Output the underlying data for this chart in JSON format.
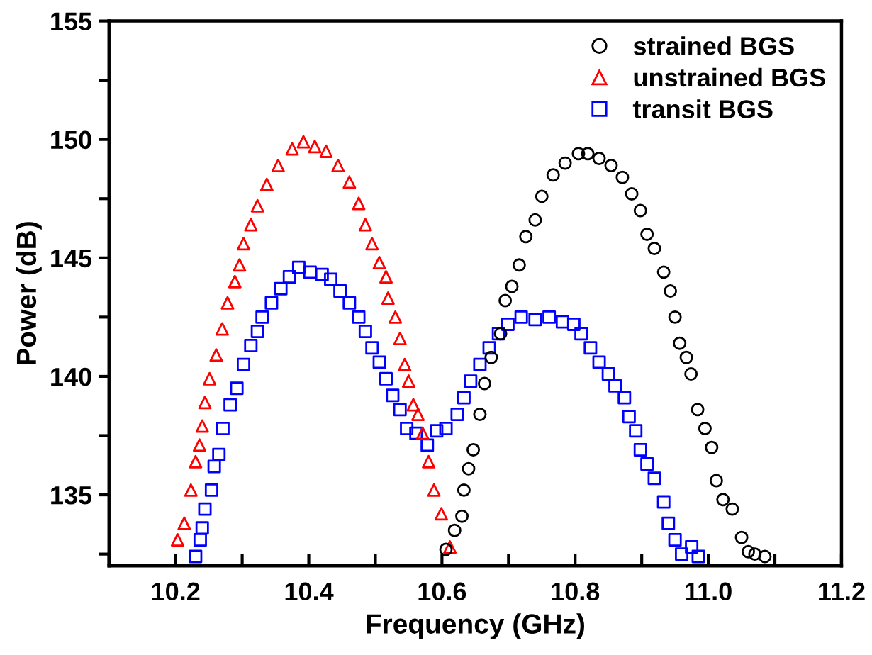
{
  "chart_data": {
    "type": "scatter",
    "xlabel": "Frequency (GHz)",
    "ylabel": "Power (dB)",
    "xlim": [
      10.1,
      11.2
    ],
    "ylim": [
      132,
      155
    ],
    "xticks": [
      {
        "value": 10.1,
        "label": null
      },
      10.2,
      {
        "value": 10.3,
        "label": null
      },
      10.4,
      {
        "value": 10.5,
        "label": null
      },
      10.6,
      {
        "value": 10.7,
        "label": null
      },
      10.8,
      {
        "value": 10.9,
        "label": null
      },
      {
        "value": 11.0,
        "label": "11.0"
      },
      {
        "value": 11.1,
        "label": null
      },
      11.2
    ],
    "yticks": [
      {
        "value": 132.5,
        "label": null
      },
      135,
      {
        "value": 137.5,
        "label": null
      },
      140,
      {
        "value": 142.5,
        "label": null
      },
      145,
      {
        "value": 147.5,
        "label": null
      },
      150,
      {
        "value": 152.5,
        "label": null
      },
      155
    ],
    "grid": false,
    "legend": "top right",
    "series": [
      {
        "name": "strained BGS",
        "color": "#000000",
        "marker": "circle",
        "x": [
          10.606,
          10.619,
          10.63,
          10.633,
          10.64,
          10.647,
          10.657,
          10.664,
          10.674,
          10.688,
          10.695,
          10.705,
          10.716,
          10.726,
          10.74,
          10.75,
          10.767,
          10.785,
          10.805,
          10.819,
          10.836,
          10.854,
          10.871,
          10.885,
          10.898,
          10.908,
          10.919,
          10.933,
          10.943,
          10.95,
          10.957,
          10.967,
          10.974,
          10.984,
          10.995,
          11.005,
          11.012,
          11.022,
          11.036,
          11.05,
          11.06,
          11.07,
          11.085
        ],
        "values": [
          132.7,
          133.5,
          134.1,
          135.2,
          136.1,
          136.9,
          138.4,
          139.7,
          140.8,
          141.8,
          143.2,
          143.8,
          144.7,
          145.9,
          146.6,
          147.6,
          148.5,
          149.0,
          149.4,
          149.4,
          149.2,
          148.9,
          148.4,
          147.7,
          147.0,
          146.0,
          145.4,
          144.4,
          143.6,
          142.5,
          141.4,
          140.8,
          140.1,
          138.6,
          137.8,
          137.0,
          135.6,
          134.8,
          134.4,
          133.2,
          132.6,
          132.5,
          132.4
        ]
      },
      {
        "name": "unstrained BGS",
        "color": "#ff0000",
        "marker": "triangle",
        "x": [
          10.203,
          10.213,
          10.223,
          10.23,
          10.236,
          10.24,
          10.244,
          10.251,
          10.261,
          10.27,
          10.278,
          10.289,
          10.296,
          10.302,
          10.313,
          10.323,
          10.337,
          10.354,
          10.375,
          10.392,
          10.409,
          10.426,
          10.444,
          10.461,
          10.475,
          10.485,
          10.495,
          10.506,
          10.516,
          10.519,
          10.53,
          10.537,
          10.544,
          10.55,
          10.557,
          10.564,
          10.571,
          10.58,
          10.588,
          10.599,
          10.612
        ],
        "values": [
          133.1,
          133.8,
          135.2,
          136.4,
          137.1,
          137.9,
          138.9,
          139.9,
          140.9,
          142.0,
          143.1,
          144.0,
          144.7,
          145.6,
          146.4,
          147.2,
          148.1,
          148.9,
          149.6,
          149.9,
          149.7,
          149.5,
          148.9,
          148.2,
          147.3,
          146.4,
          145.6,
          144.8,
          144.2,
          143.3,
          142.5,
          141.6,
          140.5,
          139.8,
          138.8,
          138.4,
          137.6,
          136.4,
          135.2,
          134.2,
          132.8
        ]
      },
      {
        "name": "transit BGS",
        "color": "#0000ff",
        "marker": "square",
        "x": [
          10.23,
          10.237,
          10.24,
          10.244,
          10.254,
          10.258,
          10.265,
          10.271,
          10.282,
          10.292,
          10.302,
          10.313,
          10.323,
          10.33,
          10.344,
          10.358,
          10.371,
          10.385,
          10.402,
          10.42,
          10.433,
          10.447,
          10.461,
          10.475,
          10.485,
          10.495,
          10.506,
          10.516,
          10.526,
          10.537,
          10.547,
          10.561,
          10.578,
          10.592,
          10.606,
          10.623,
          10.633,
          10.643,
          10.657,
          10.671,
          10.685,
          10.699,
          10.719,
          10.74,
          10.761,
          10.781,
          10.798,
          10.809,
          10.823,
          10.836,
          10.85,
          10.86,
          10.874,
          10.881,
          10.891,
          10.898,
          10.908,
          10.919,
          10.933,
          10.94,
          10.95,
          10.96,
          10.975,
          10.985
        ],
        "values": [
          132.4,
          133.1,
          133.6,
          134.4,
          135.2,
          136.2,
          136.7,
          137.8,
          138.8,
          139.5,
          140.5,
          141.3,
          141.9,
          142.5,
          143.1,
          143.7,
          144.2,
          144.6,
          144.4,
          144.3,
          144.1,
          143.6,
          143.1,
          142.5,
          141.9,
          141.2,
          140.6,
          139.9,
          139.2,
          138.6,
          137.8,
          137.6,
          137.1,
          137.7,
          137.8,
          138.4,
          139.1,
          139.8,
          140.5,
          141.2,
          141.8,
          142.2,
          142.5,
          142.4,
          142.5,
          142.3,
          142.2,
          141.8,
          141.2,
          140.6,
          140.1,
          139.6,
          139.1,
          138.3,
          137.7,
          136.9,
          136.3,
          135.7,
          134.7,
          133.8,
          133.1,
          132.5,
          132.8,
          132.4
        ]
      }
    ]
  }
}
